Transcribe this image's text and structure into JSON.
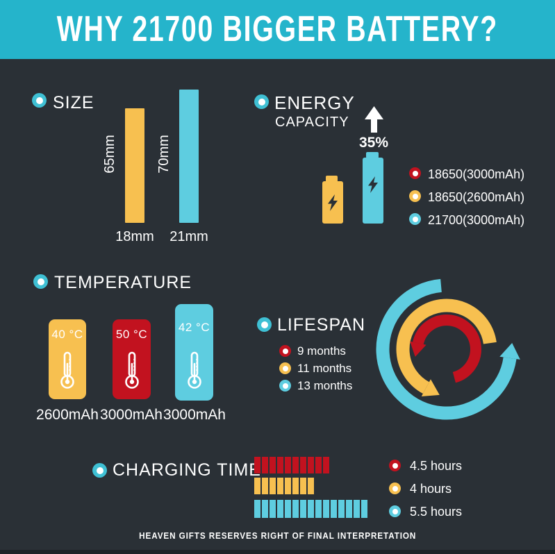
{
  "header": {
    "title": "WHY 21700 BIGGER BATTERY?"
  },
  "colors": {
    "accent_teal": "#25b4cb",
    "teal": "#5ecde0",
    "yellow": "#f7c050",
    "red": "#c2121f",
    "background": "#2a3036",
    "text": "#ffffff"
  },
  "size_section": {
    "label": "SIZE",
    "bars": [
      {
        "height_label": "65mm",
        "width_label": "18mm",
        "color": "yellow"
      },
      {
        "height_label": "70mm",
        "width_label": "21mm",
        "color": "teal"
      }
    ]
  },
  "energy_section": {
    "label_line1": "ENERGY",
    "label_line2": "CAPACITY",
    "increase_label": "35%",
    "legend": [
      {
        "label": "18650(3000mAh)",
        "color": "red"
      },
      {
        "label": "18650(2600mAh)",
        "color": "yellow"
      },
      {
        "label": "21700(3000mAh)",
        "color": "teal"
      }
    ]
  },
  "temperature_section": {
    "label": "TEMPERATURE",
    "cards": [
      {
        "temp": "40 °C",
        "capacity": "2600mAh",
        "color": "yellow"
      },
      {
        "temp": "50 °C",
        "capacity": "3000mAh",
        "color": "red"
      },
      {
        "temp": "42 °C",
        "capacity": "3000mAh",
        "color": "teal"
      }
    ]
  },
  "lifespan_section": {
    "label": "LIFESPAN",
    "legend": [
      {
        "label": "9 months",
        "color": "red"
      },
      {
        "label": "11 months",
        "color": "yellow"
      },
      {
        "label": "13 months",
        "color": "teal"
      }
    ]
  },
  "charging_section": {
    "label": "CHARGING TIME",
    "rows": [
      {
        "segments": 10,
        "color": "red",
        "label": "4.5 hours"
      },
      {
        "segments": 8,
        "color": "yellow",
        "label": "4 hours"
      },
      {
        "segments": 15,
        "color": "teal",
        "label": "5.5 hours"
      }
    ]
  },
  "footer": {
    "text": "HEAVEN GIFTS RESERVES RIGHT OF FINAL INTERPRETATION"
  },
  "chart_data": [
    {
      "type": "bar",
      "title": "SIZE",
      "categories": [
        "18650",
        "21700"
      ],
      "series": [
        {
          "name": "length_mm",
          "values": [
            65,
            70
          ]
        },
        {
          "name": "diameter_mm",
          "values": [
            18,
            21
          ]
        }
      ],
      "legend_position": "none"
    },
    {
      "type": "bar",
      "title": "ENERGY CAPACITY",
      "categories": [
        "18650(3000mAh)",
        "18650(2600mAh)",
        "21700(3000mAh)"
      ],
      "values": [
        3000,
        2600,
        3000
      ],
      "annotations": [
        "35% increase arrow above 21700 battery"
      ],
      "ylabel": "mAh"
    },
    {
      "type": "bar",
      "title": "TEMPERATURE",
      "categories": [
        "2600mAh",
        "3000mAh",
        "3000mAh"
      ],
      "values": [
        40,
        50,
        42
      ],
      "ylabel": "°C"
    },
    {
      "type": "pie",
      "title": "LIFESPAN",
      "categories": [
        "18650(3000mAh)",
        "18650(2600mAh)",
        "21700(3000mAh)"
      ],
      "values": [
        9,
        11,
        13
      ],
      "ylabel": "months",
      "legend_position": "left"
    },
    {
      "type": "bar",
      "title": "CHARGING TIME",
      "categories": [
        "18650(3000mAh)",
        "18650(2600mAh)",
        "21700(3000mAh)"
      ],
      "values": [
        4.5,
        4,
        5.5
      ],
      "ylabel": "hours",
      "segment_counts": [
        10,
        8,
        15
      ]
    }
  ]
}
